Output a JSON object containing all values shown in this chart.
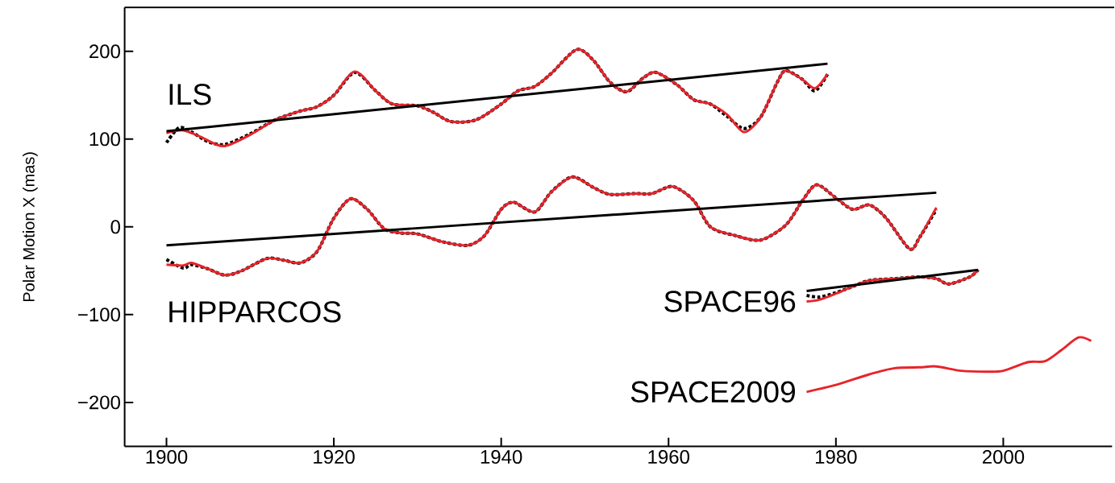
{
  "chart_data": {
    "type": "line",
    "ylabel": "Polar Motion X (mas)",
    "xlim": [
      1895,
      2013
    ],
    "ylim": [
      -250,
      250
    ],
    "xticks": [
      1900,
      1920,
      1940,
      1960,
      1980,
      2000
    ],
    "yticks": [
      {
        "value": -200,
        "label": "−200"
      },
      {
        "value": -100,
        "label": "−100"
      },
      0,
      100,
      200
    ],
    "grid": false,
    "marker": "none",
    "series": [
      {
        "color": "#000000",
        "line_style": "dashed",
        "x": [
          1900,
          1901.5,
          1903,
          1905,
          1907,
          1910,
          1913,
          1916,
          1918,
          1920,
          1922.5,
          1925,
          1927,
          1930,
          1932,
          1934,
          1937,
          1940,
          1942,
          1944,
          1946,
          1949,
          1951,
          1953,
          1955,
          1957,
          1958.5,
          1961,
          1963,
          1965,
          1967,
          1969,
          1971,
          1973,
          1974,
          1976,
          1977.5,
          1979
        ],
        "values": [
          96,
          113,
          108,
          97,
          94,
          106,
          122,
          132,
          137,
          150,
          176,
          155,
          140,
          138,
          130,
          120,
          122,
          140,
          155,
          160,
          175,
          202,
          190,
          165,
          154,
          170,
          176,
          162,
          145,
          140,
          126,
          112,
          125,
          165,
          178,
          168,
          155,
          174
        ]
      },
      {
        "name": "ILS",
        "color": "#e8232a",
        "line_style": "solid",
        "x": [
          1900,
          1902,
          1904,
          1906.8,
          1910,
          1913,
          1916,
          1918,
          1920,
          1922.5,
          1925,
          1927,
          1930,
          1932,
          1934,
          1937,
          1940,
          1942,
          1944,
          1946,
          1949,
          1951,
          1953,
          1955,
          1957,
          1958.5,
          1961,
          1963,
          1965,
          1967,
          1969,
          1971,
          1973,
          1974,
          1976,
          1977.5,
          1979
        ],
        "values": [
          107,
          110,
          103,
          92,
          105,
          122,
          132,
          137,
          150,
          177,
          155,
          140,
          138,
          130,
          120,
          122,
          140,
          155,
          160,
          175,
          202,
          190,
          165,
          154,
          170,
          176,
          162,
          145,
          140,
          128,
          108,
          125,
          165,
          178,
          168,
          158,
          174
        ]
      },
      {
        "color": "#000000",
        "line_style": "solid",
        "x": [
          1900,
          1979
        ],
        "values": [
          109,
          186
        ]
      },
      {
        "color": "#000000",
        "line_style": "dashed",
        "x": [
          1900,
          1902,
          1903,
          1905,
          1907,
          1909,
          1912,
          1914,
          1916,
          1918,
          1920,
          1922,
          1924,
          1926,
          1928,
          1930,
          1933,
          1936,
          1938,
          1940,
          1941.5,
          1944,
          1946,
          1948.5,
          1951,
          1953,
          1956,
          1958,
          1960.5,
          1963,
          1965,
          1968,
          1971,
          1974,
          1976,
          1977.7,
          1980,
          1982,
          1984,
          1986,
          1988.8,
          1990,
          1992
        ],
        "values": [
          -37,
          -47,
          -43,
          -48,
          -55,
          -50,
          -36,
          -38,
          -41,
          -28,
          10,
          32,
          20,
          -2,
          -7,
          -8,
          -17,
          -21,
          -10,
          20,
          28,
          17,
          40,
          57,
          45,
          37,
          38,
          38,
          46,
          30,
          0,
          -10,
          -15,
          2,
          30,
          48,
          33,
          20,
          25,
          10,
          -25,
          -12,
          20
        ]
      },
      {
        "name": "HIPPARCOS",
        "color": "#e8232a",
        "line_style": "solid",
        "x": [
          1900,
          1902,
          1903,
          1905,
          1907,
          1909,
          1912,
          1914,
          1916,
          1918,
          1920,
          1922,
          1924,
          1926,
          1928,
          1930,
          1933,
          1936,
          1938,
          1940,
          1941.5,
          1944,
          1946,
          1948.5,
          1951,
          1953,
          1956,
          1958,
          1960.5,
          1963,
          1965,
          1968,
          1971,
          1974,
          1976,
          1977.7,
          1980,
          1982,
          1984,
          1986,
          1988.8,
          1990,
          1992
        ],
        "values": [
          -43,
          -44,
          -41,
          -48,
          -55,
          -50,
          -36,
          -38,
          -41,
          -28,
          10,
          32,
          20,
          -2,
          -7,
          -8,
          -17,
          -21,
          -10,
          20,
          28,
          17,
          40,
          57,
          45,
          37,
          38,
          38,
          46,
          30,
          0,
          -10,
          -15,
          2,
          30,
          48,
          33,
          20,
          25,
          10,
          -25,
          -12,
          22
        ]
      },
      {
        "color": "#000000",
        "line_style": "solid",
        "x": [
          1900,
          1992
        ],
        "values": [
          -21,
          39
        ]
      },
      {
        "color": "#000000",
        "line_style": "dashed",
        "x": [
          1976.5,
          1978,
          1980,
          1982,
          1984,
          1987,
          1990,
          1992,
          1993.5,
          1996,
          1997
        ],
        "values": [
          -78,
          -80,
          -75,
          -68,
          -61,
          -59,
          -57,
          -59,
          -65,
          -57,
          -49
        ]
      },
      {
        "name": "SPACE96",
        "color": "#e8232a",
        "line_style": "solid",
        "x": [
          1976.5,
          1978,
          1980,
          1982,
          1984,
          1987,
          1990,
          1992,
          1993.5,
          1996,
          1997
        ],
        "values": [
          -85,
          -83,
          -76,
          -68,
          -61,
          -59,
          -57,
          -59,
          -65,
          -57,
          -49
        ]
      },
      {
        "color": "#000000",
        "line_style": "solid",
        "x": [
          1976.5,
          1997
        ],
        "values": [
          -73,
          -49
        ]
      },
      {
        "name": "SPACE2009",
        "color": "#e8232a",
        "line_style": "solid",
        "x": [
          1976.5,
          1980,
          1984,
          1987,
          1990,
          1992,
          1995,
          1998,
          2000,
          2003,
          2005,
          2007,
          2009,
          2010.5
        ],
        "values": [
          -188,
          -180,
          -168,
          -161,
          -160,
          -159,
          -164,
          -165,
          -164,
          -154,
          -153,
          -140,
          -126,
          -130
        ]
      }
    ]
  }
}
